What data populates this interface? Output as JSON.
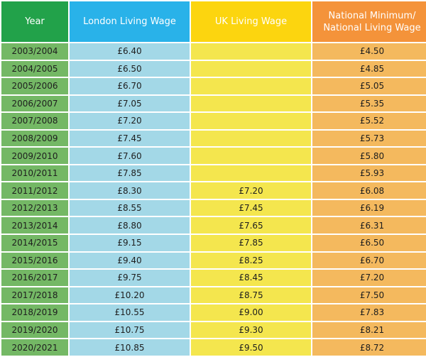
{
  "chart_data": {
    "type": "table",
    "columns": [
      {
        "key": "year",
        "label": "Year"
      },
      {
        "key": "london",
        "label": "London Living Wage"
      },
      {
        "key": "uk",
        "label": "UK Living Wage"
      },
      {
        "key": "nmw",
        "label_lines": [
          "National Minimum/",
          "National Living Wage"
        ]
      }
    ],
    "rows": [
      {
        "year": "2003/2004",
        "london": "£6.40",
        "uk": "",
        "nmw": "£4.50"
      },
      {
        "year": "2004/2005",
        "london": "£6.50",
        "uk": "",
        "nmw": "£4.85"
      },
      {
        "year": "2005/2006",
        "london": "£6.70",
        "uk": "",
        "nmw": "£5.05"
      },
      {
        "year": "2006/2007",
        "london": "£7.05",
        "uk": "",
        "nmw": "£5.35"
      },
      {
        "year": "2007/2008",
        "london": "£7.20",
        "uk": "",
        "nmw": "£5.52"
      },
      {
        "year": "2008/2009",
        "london": "£7.45",
        "uk": "",
        "nmw": "£5.73"
      },
      {
        "year": "2009/2010",
        "london": "£7.60",
        "uk": "",
        "nmw": "£5.80"
      },
      {
        "year": "2010/2011",
        "london": "£7.85",
        "uk": "",
        "nmw": "£5.93"
      },
      {
        "year": "2011/2012",
        "london": "£8.30",
        "uk": "£7.20",
        "nmw": "£6.08"
      },
      {
        "year": "2012/2013",
        "london": "£8.55",
        "uk": "£7.45",
        "nmw": "£6.19"
      },
      {
        "year": "2013/2014",
        "london": "£8.80",
        "uk": "£7.65",
        "nmw": "£6.31"
      },
      {
        "year": "2014/2015",
        "london": "£9.15",
        "uk": "£7.85",
        "nmw": "£6.50"
      },
      {
        "year": "2015/2016",
        "london": "£9.40",
        "uk": "£8.25",
        "nmw": "£6.70"
      },
      {
        "year": "2016/2017",
        "london": "£9.75",
        "uk": "£8.45",
        "nmw": "£7.20"
      },
      {
        "year": "2017/2018",
        "london": "£10.20",
        "uk": "£8.75",
        "nmw": "£7.50"
      },
      {
        "year": "2018/2019",
        "london": "£10.55",
        "uk": "£9.00",
        "nmw": "£7.83"
      },
      {
        "year": "2019/2020",
        "london": "£10.75",
        "uk": "£9.30",
        "nmw": "£8.21"
      },
      {
        "year": "2020/2021",
        "london": "£10.85",
        "uk": "£9.50",
        "nmw": "£8.72"
      }
    ]
  },
  "colors": {
    "year_header": "#22a24a",
    "london_header": "#29b2e9",
    "uk_header": "#fcd50f",
    "nmw_header": "#f4933a",
    "year_cell": "#74b865",
    "london_cell": "#a3d8e7",
    "uk_cell": "#f4e64e",
    "nmw_cell": "#f4b95e"
  }
}
